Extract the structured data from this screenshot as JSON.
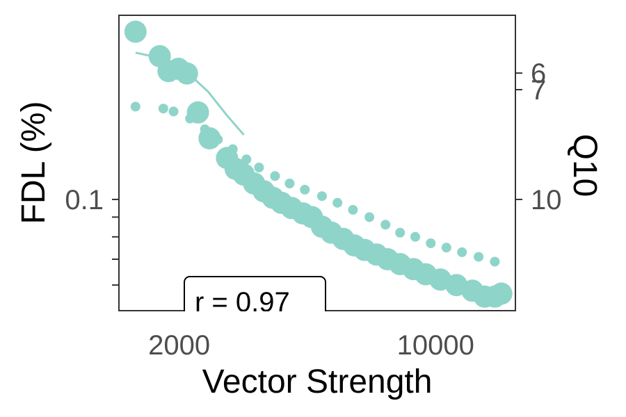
{
  "chart_data": {
    "type": "scatter",
    "xlabel": "Vector Strength",
    "ylabel": "FDL (%)",
    "y2label": "Q10",
    "x_scale": "log",
    "y_scale": "log",
    "xlim": [
      1370,
      16500
    ],
    "ylim": [
      0.0515,
      0.3
    ],
    "x_ticks": [
      {
        "value": 2000,
        "label": "2000"
      },
      {
        "value": 10000,
        "label": "10000"
      }
    ],
    "x_minor_ticks": [
      3000,
      4000,
      5000,
      6000,
      7000,
      8000,
      9000
    ],
    "y_ticks": [
      {
        "value": 0.1,
        "label": "0.1"
      }
    ],
    "y_minor_ticks": [
      0.09,
      0.08,
      0.07,
      0.06
    ],
    "y2_ticks": [
      {
        "value": 6,
        "label": "6"
      },
      {
        "value": 7,
        "label": "7"
      },
      {
        "value": 10,
        "label": "10"
      }
    ],
    "y2_map": {
      "q": [
        6,
        7,
        10
      ],
      "fdl": [
        0.2125,
        0.1925,
        0.1
      ]
    },
    "grid": false,
    "legend": "none",
    "colors": {
      "series": "#8fd4c9",
      "axis": "#333333",
      "tick_text": "#4d4d4d"
    },
    "series": [
      {
        "marker": "large",
        "points": [
          [
            1520,
            0.272
          ],
          [
            1770,
            0.235
          ],
          [
            1870,
            0.215
          ],
          [
            1990,
            0.218
          ],
          [
            2100,
            0.212
          ],
          [
            2250,
            0.168
          ],
          [
            2420,
            0.144
          ],
          [
            2700,
            0.128
          ],
          [
            2850,
            0.12
          ],
          [
            3000,
            0.116
          ],
          [
            3200,
            0.11
          ],
          [
            3400,
            0.105
          ],
          [
            3600,
            0.101
          ],
          [
            3800,
            0.098
          ],
          [
            4050,
            0.095
          ],
          [
            4350,
            0.092
          ],
          [
            4600,
            0.09
          ],
          [
            4900,
            0.085
          ],
          [
            5200,
            0.082
          ],
          [
            5600,
            0.079
          ],
          [
            6000,
            0.076
          ],
          [
            6400,
            0.074
          ],
          [
            6900,
            0.072
          ],
          [
            7400,
            0.07
          ],
          [
            8000,
            0.068
          ],
          [
            8700,
            0.066
          ],
          [
            9400,
            0.064
          ],
          [
            10300,
            0.062
          ],
          [
            11400,
            0.06
          ],
          [
            12600,
            0.058
          ],
          [
            13600,
            0.056
          ],
          [
            14500,
            0.056
          ],
          [
            15100,
            0.057
          ]
        ]
      },
      {
        "marker": "small",
        "points": [
          [
            1520,
            0.174
          ],
          [
            1810,
            0.172
          ],
          [
            1930,
            0.169
          ],
          [
            2140,
            0.162
          ],
          [
            2350,
            0.152
          ],
          [
            2550,
            0.143
          ],
          [
            2800,
            0.135
          ],
          [
            3050,
            0.127
          ],
          [
            3300,
            0.121
          ],
          [
            3650,
            0.115
          ],
          [
            4000,
            0.11
          ],
          [
            4400,
            0.106
          ],
          [
            4900,
            0.102
          ],
          [
            5400,
            0.098
          ],
          [
            5950,
            0.094
          ],
          [
            6600,
            0.09
          ],
          [
            7300,
            0.086
          ],
          [
            8000,
            0.082
          ],
          [
            8800,
            0.08
          ],
          [
            9700,
            0.077
          ],
          [
            10700,
            0.075
          ],
          [
            11800,
            0.073
          ],
          [
            13100,
            0.071
          ],
          [
            14500,
            0.069
          ]
        ]
      },
      {
        "marker": "line",
        "points": [
          [
            1520,
            0.24
          ],
          [
            1800,
            0.232
          ],
          [
            2100,
            0.214
          ],
          [
            2400,
            0.19
          ],
          [
            2700,
            0.165
          ],
          [
            3000,
            0.147
          ]
        ]
      }
    ],
    "annotations": [
      {
        "text": "r =  0.97",
        "boxed": true,
        "position": "bottom-left"
      }
    ]
  }
}
